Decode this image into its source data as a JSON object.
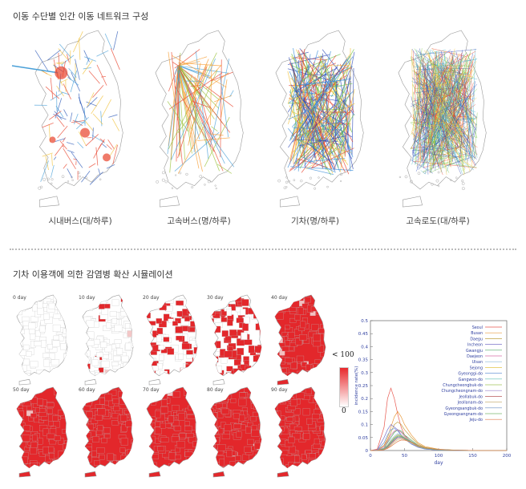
{
  "section1": {
    "title": "이동 수단별 인간 이동 네트워크 구성"
  },
  "maps": [
    {
      "caption": "시내버스(대/하루)"
    },
    {
      "caption": "고속버스(명/하루)"
    },
    {
      "caption": "기차(명/하루)"
    },
    {
      "caption": "고속로도(대/하루)"
    }
  ],
  "section2": {
    "title": "기차 이용객에 의한 감염병 확산 시뮬레이션"
  },
  "days": [
    "0 day",
    "10 day",
    "20 day",
    "30 day",
    "40 day",
    "50 day",
    "60 day",
    "70 day",
    "80 day",
    "90 day"
  ],
  "colorbar": {
    "max_label": "< 100",
    "min_label": "0",
    "high_color": "#e8282c",
    "low_color": "#ffffff"
  },
  "colors": {
    "fill": "#e3272b",
    "outline": "#9a9a9a"
  },
  "chart_data": {
    "type": "line",
    "xlabel": "day",
    "ylabel": "incidence rate(%)",
    "xlim": [
      0,
      200
    ],
    "ylim": [
      0,
      0.5
    ],
    "xticks": [
      "0",
      "50",
      "100",
      "150",
      "200"
    ],
    "yticks": [
      "0",
      "0.05",
      "0.1",
      "0.15",
      "0.2",
      "0.25",
      "0.3",
      "0.35",
      "0.4",
      "0.45",
      "0.5"
    ],
    "x": [
      0,
      10,
      20,
      25,
      30,
      35,
      40,
      45,
      50,
      60,
      70,
      80,
      100,
      130,
      160,
      200
    ],
    "series": [
      {
        "name": "Seoul",
        "color": "#e8584f",
        "values": [
          0,
          0.005,
          0.09,
          0.2,
          0.24,
          0.2,
          0.14,
          0.09,
          0.06,
          0.03,
          0.014,
          0.006,
          0.002,
          0.0005,
          0,
          0
        ]
      },
      {
        "name": "Busan",
        "color": "#e99a3c",
        "values": [
          0,
          0.001,
          0.02,
          0.05,
          0.09,
          0.13,
          0.15,
          0.13,
          0.1,
          0.06,
          0.03,
          0.015,
          0.005,
          0.001,
          0,
          0
        ]
      },
      {
        "name": "Daegu",
        "color": "#c0a040",
        "values": [
          0,
          0.001,
          0.02,
          0.04,
          0.07,
          0.1,
          0.11,
          0.1,
          0.08,
          0.05,
          0.025,
          0.012,
          0.004,
          0.001,
          0,
          0
        ]
      },
      {
        "name": "Incheon",
        "color": "#7b74c9",
        "values": [
          0,
          0.002,
          0.05,
          0.08,
          0.1,
          0.09,
          0.08,
          0.06,
          0.045,
          0.025,
          0.012,
          0.006,
          0.002,
          0.0005,
          0,
          0
        ]
      },
      {
        "name": "Gwangju",
        "color": "#52a866",
        "values": [
          0,
          0.001,
          0.01,
          0.03,
          0.05,
          0.07,
          0.08,
          0.075,
          0.06,
          0.04,
          0.02,
          0.01,
          0.003,
          0.001,
          0,
          0
        ]
      },
      {
        "name": "Daejeon",
        "color": "#d66fa6",
        "values": [
          0,
          0.001,
          0.015,
          0.035,
          0.06,
          0.075,
          0.08,
          0.07,
          0.055,
          0.035,
          0.018,
          0.009,
          0.003,
          0.001,
          0,
          0
        ]
      },
      {
        "name": "Ulsan",
        "color": "#8ab4d8",
        "values": [
          0,
          0.0005,
          0.01,
          0.02,
          0.04,
          0.055,
          0.065,
          0.06,
          0.05,
          0.032,
          0.017,
          0.008,
          0.003,
          0.001,
          0,
          0
        ]
      },
      {
        "name": "Sejong",
        "color": "#e3c54a",
        "values": [
          0,
          0.0005,
          0.008,
          0.02,
          0.035,
          0.05,
          0.06,
          0.055,
          0.045,
          0.03,
          0.016,
          0.008,
          0.003,
          0.001,
          0,
          0
        ]
      },
      {
        "name": "Gyeonggi-do",
        "color": "#6f9ad8",
        "values": [
          0,
          0.002,
          0.03,
          0.06,
          0.08,
          0.085,
          0.075,
          0.06,
          0.045,
          0.026,
          0.013,
          0.006,
          0.002,
          0.0005,
          0,
          0
        ]
      },
      {
        "name": "Gangwon-do",
        "color": "#5fbfb3",
        "values": [
          0,
          0.0005,
          0.006,
          0.015,
          0.03,
          0.045,
          0.055,
          0.055,
          0.05,
          0.035,
          0.02,
          0.01,
          0.004,
          0.001,
          0,
          0
        ]
      },
      {
        "name": "Chungcheongbuk-do",
        "color": "#a3c45a",
        "values": [
          0,
          0.0005,
          0.008,
          0.02,
          0.035,
          0.05,
          0.06,
          0.058,
          0.05,
          0.034,
          0.018,
          0.009,
          0.003,
          0.001,
          0,
          0
        ]
      },
      {
        "name": "Chungcheongnam-do",
        "color": "#9a7fc7",
        "values": [
          0,
          0.0005,
          0.007,
          0.018,
          0.032,
          0.046,
          0.056,
          0.055,
          0.048,
          0.033,
          0.018,
          0.009,
          0.003,
          0.001,
          0,
          0
        ]
      },
      {
        "name": "Jeollabuk-do",
        "color": "#b8585a",
        "values": [
          0,
          0.0005,
          0.005,
          0.012,
          0.025,
          0.038,
          0.048,
          0.05,
          0.045,
          0.032,
          0.018,
          0.009,
          0.003,
          0.001,
          0,
          0
        ]
      },
      {
        "name": "Jeollanam-do",
        "color": "#c9b27a",
        "values": [
          0,
          0.0003,
          0.004,
          0.01,
          0.02,
          0.032,
          0.042,
          0.045,
          0.042,
          0.031,
          0.018,
          0.009,
          0.003,
          0.001,
          0,
          0
        ]
      },
      {
        "name": "Gyeongsangbuk-do",
        "color": "#6a8fc0",
        "values": [
          0,
          0.0005,
          0.006,
          0.015,
          0.028,
          0.042,
          0.052,
          0.052,
          0.046,
          0.032,
          0.018,
          0.009,
          0.003,
          0.001,
          0,
          0
        ]
      },
      {
        "name": "Gyeongsangnam-do",
        "color": "#7ab86f",
        "values": [
          0,
          0.0005,
          0.006,
          0.016,
          0.03,
          0.045,
          0.055,
          0.054,
          0.047,
          0.033,
          0.018,
          0.009,
          0.003,
          0.001,
          0,
          0
        ]
      },
      {
        "name": "Jeju-do",
        "color": "#e07a4a",
        "values": [
          0,
          0.0002,
          0.003,
          0.008,
          0.016,
          0.026,
          0.035,
          0.04,
          0.04,
          0.032,
          0.02,
          0.01,
          0.004,
          0.001,
          0,
          0
        ]
      }
    ]
  }
}
